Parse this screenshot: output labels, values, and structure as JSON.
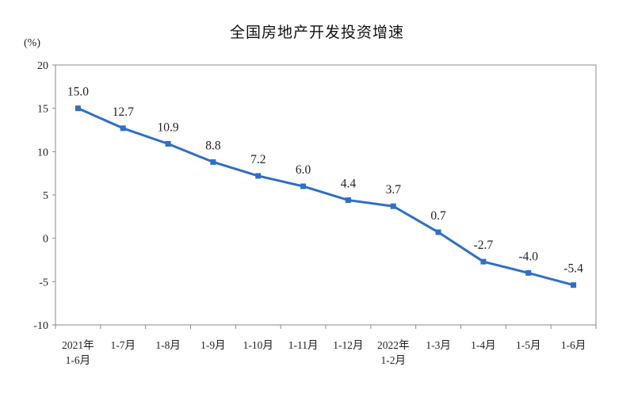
{
  "chart_data": {
    "type": "line",
    "title": "全国房地产开发投资增速",
    "ylabel": "(%)",
    "xlabel": "",
    "ylim": [
      -10,
      20
    ],
    "yticks": [
      20,
      15,
      10,
      5,
      0,
      -5,
      -10
    ],
    "grid": false,
    "legend": "none",
    "categories": [
      [
        "2021年",
        "1-6月"
      ],
      [
        "1-7月"
      ],
      [
        "1-8月"
      ],
      [
        "1-9月"
      ],
      [
        "1-10月"
      ],
      [
        "1-11月"
      ],
      [
        "1-12月"
      ],
      [
        "2022年",
        "1-2月"
      ],
      [
        "1-3月"
      ],
      [
        "1-4月"
      ],
      [
        "1-5月"
      ],
      [
        "1-6月"
      ]
    ],
    "values": [
      15.0,
      12.7,
      10.9,
      8.8,
      7.2,
      6.0,
      4.4,
      3.7,
      0.7,
      -2.7,
      -4.0,
      -5.4
    ],
    "data_labels": [
      "15.0",
      "12.7",
      "10.9",
      "8.8",
      "7.2",
      "6.0",
      "4.4",
      "3.7",
      "0.7",
      "-2.7",
      "-4.0",
      "-5.4"
    ],
    "line_color": "#2e6fc7",
    "axis_color": "#8a8a8a"
  }
}
